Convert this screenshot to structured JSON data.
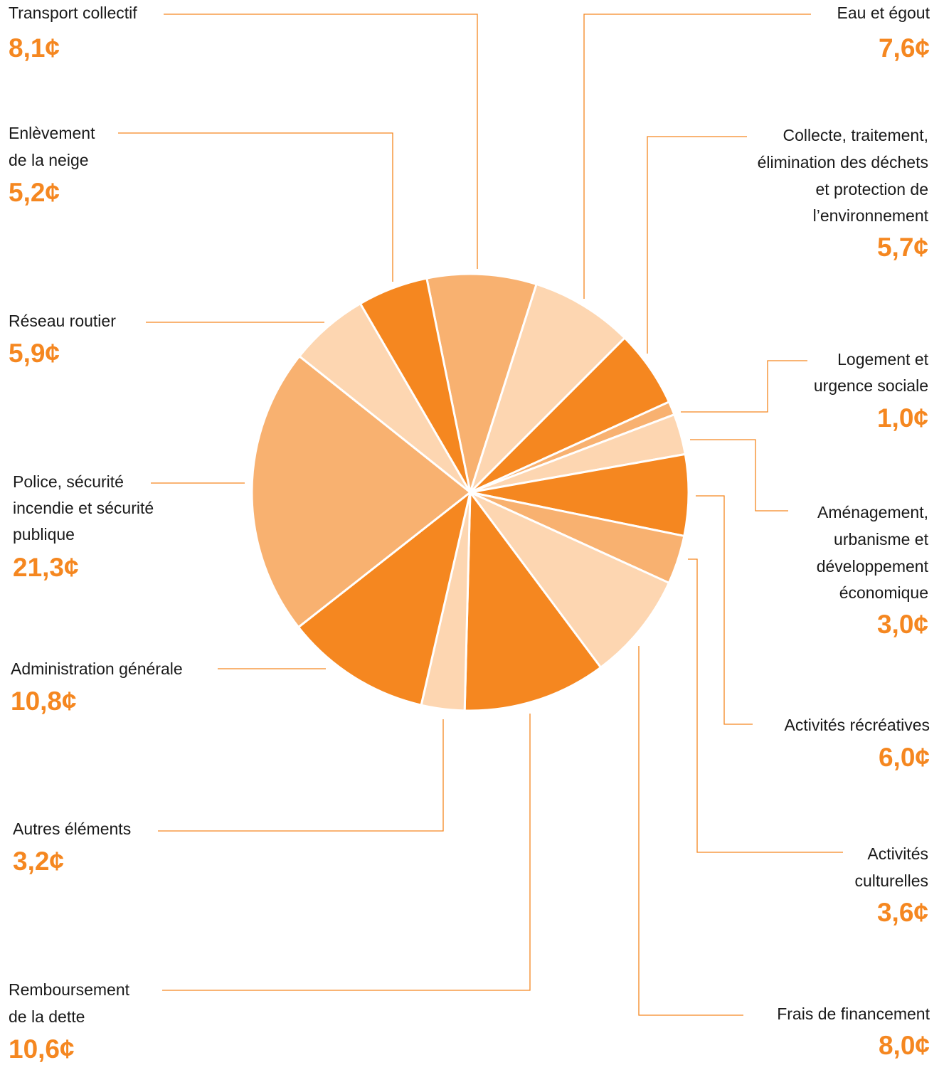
{
  "chart_data": {
    "type": "pie",
    "categories": [
      [
        "Transport collectif"
      ],
      [
        "Eau et égout"
      ],
      [
        "Collecte, traitement,",
        "élimination des déchets",
        "et protection de",
        "l’environnement"
      ],
      [
        "Logement et",
        "urgence sociale"
      ],
      [
        "Aménagement,",
        "urbanisme et",
        "développement",
        "économique"
      ],
      [
        "Activités récréatives"
      ],
      [
        "Activités",
        "culturelles"
      ],
      [
        "Frais de financement"
      ],
      [
        "Remboursement",
        "de la dette"
      ],
      [
        "Autres éléments"
      ],
      [
        "Administration générale"
      ],
      [
        "Police, sécurité",
        "incendie et sécurité",
        "publique"
      ],
      [
        "Réseau routier"
      ],
      [
        "Enlèvement",
        "de la neige"
      ]
    ],
    "values": [
      8.1,
      7.6,
      5.7,
      1.0,
      3.0,
      6.0,
      3.6,
      8.0,
      10.6,
      3.2,
      10.8,
      21.3,
      5.9,
      5.2
    ],
    "value_labels": [
      "8,1¢",
      "7,6¢",
      "5,7¢",
      "1,0¢",
      "3,0¢",
      "6,0¢",
      "3,6¢",
      "8,0¢",
      "10,6¢",
      "3,2¢",
      "10,8¢",
      "21,3¢",
      "5,9¢",
      "5,2¢"
    ],
    "colors": [
      "#f8b170",
      "#fdd6b1",
      "#f58720",
      "#f8b170",
      "#fdd6b1",
      "#f58720",
      "#f8b170",
      "#fdd6b1",
      "#f58720",
      "#fdd6b1",
      "#f58720",
      "#f8b170",
      "#fdd6b1",
      "#f58720"
    ]
  }
}
